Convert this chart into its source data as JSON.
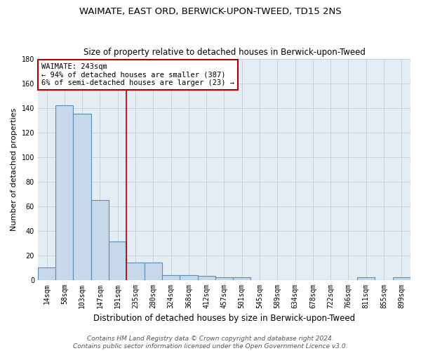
{
  "title": "WAIMATE, EAST ORD, BERWICK-UPON-TWEED, TD15 2NS",
  "subtitle": "Size of property relative to detached houses in Berwick-upon-Tweed",
  "xlabel": "Distribution of detached houses by size in Berwick-upon-Tweed",
  "ylabel": "Number of detached properties",
  "bar_color": "#c8d8eb",
  "bar_edge_color": "#5a8db0",
  "grid_color": "#c8d0da",
  "background_color": "#e4ecf4",
  "vline_color": "#aa0000",
  "vline_x": 4.5,
  "categories": [
    "14sqm",
    "58sqm",
    "103sqm",
    "147sqm",
    "191sqm",
    "235sqm",
    "280sqm",
    "324sqm",
    "368sqm",
    "412sqm",
    "457sqm",
    "501sqm",
    "545sqm",
    "589sqm",
    "634sqm",
    "678sqm",
    "722sqm",
    "766sqm",
    "811sqm",
    "855sqm",
    "899sqm"
  ],
  "values": [
    10,
    142,
    135,
    65,
    31,
    14,
    14,
    4,
    4,
    3,
    2,
    2,
    0,
    0,
    0,
    0,
    0,
    0,
    2,
    0,
    2
  ],
  "ylim": [
    0,
    180
  ],
  "yticks": [
    0,
    20,
    40,
    60,
    80,
    100,
    120,
    140,
    160,
    180
  ],
  "annotation_text": "WAIMATE: 243sqm\n← 94% of detached houses are smaller (387)\n6% of semi-detached houses are larger (23) →",
  "footer_line1": "Contains HM Land Registry data © Crown copyright and database right 2024.",
  "footer_line2": "Contains public sector information licensed under the Open Government Licence v3.0.",
  "title_fontsize": 9.5,
  "subtitle_fontsize": 8.5,
  "xlabel_fontsize": 8.5,
  "ylabel_fontsize": 8,
  "tick_fontsize": 7,
  "annotation_fontsize": 7.5,
  "footer_fontsize": 6.5
}
